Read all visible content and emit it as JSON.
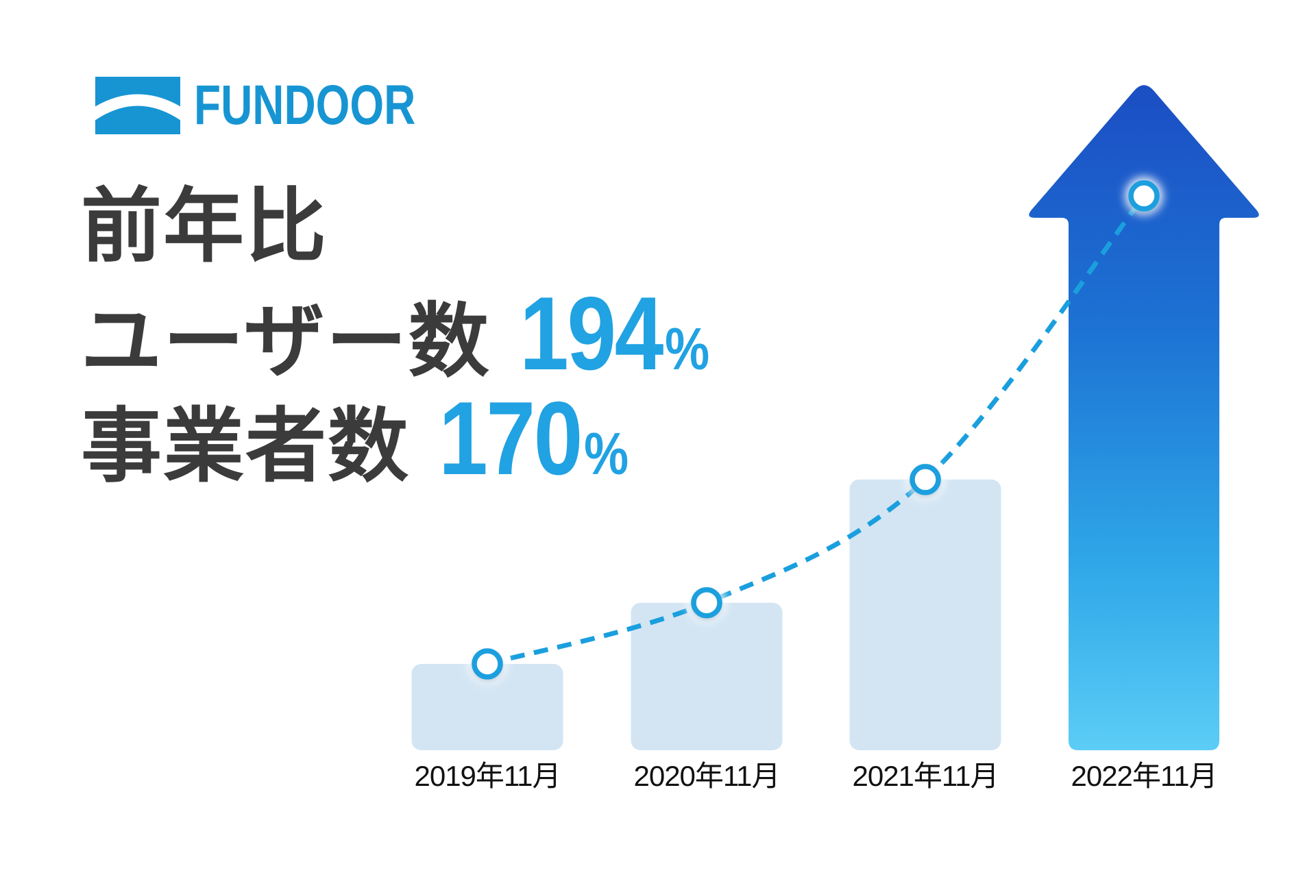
{
  "brand": {
    "wordmark": "FUNDOOR"
  },
  "headline": {
    "line1": "前年比",
    "line2_label": "ユーザー数",
    "line2_value": "194",
    "line2_unit": "%",
    "line3_label": "事業者数",
    "line3_value": "170",
    "line3_unit": "%"
  },
  "colors": {
    "logo_blue": "#1795D3",
    "text_dark": "#3B3B3B",
    "number_blue": "#21A2E2",
    "accent_blue": "#1A9FDE",
    "bar_fill": "#D3E5F3",
    "label_color": "#111111",
    "arrow_top": "#1B4EC4",
    "arrow_mid": "#1D74D4",
    "arrow_low": "#2FA7E8",
    "arrow_bottom": "#5BCDF6"
  },
  "chart_data": {
    "type": "bar",
    "title": "",
    "xlabel": "",
    "ylabel": "",
    "categories": [
      "2019年11月",
      "2020年11月",
      "2021年11月",
      "2022年11月"
    ],
    "values": [
      1.0,
      1.72,
      3.17,
      7.88
    ],
    "values_note": "relative growth estimated from bar heights, 2019年11月 = 1.0; no numeric axis shown",
    "grid": false,
    "legend": false,
    "annotations": {
      "last_bar_style": "upward arrow with blue gradient",
      "trendline": "dashed curve through the top-center point of each bar, marked with white circles"
    }
  }
}
